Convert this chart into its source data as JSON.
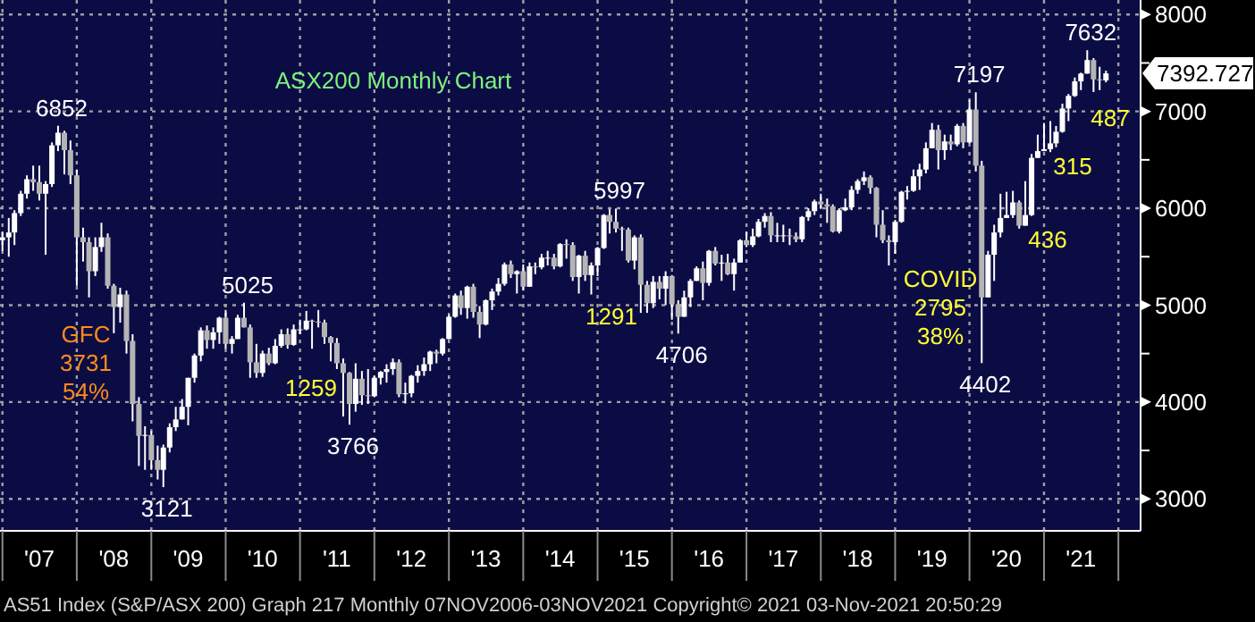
{
  "chart_data": {
    "type": "candlestick",
    "title": "ASX200 Monthly Chart",
    "x": [
      "2007-01",
      "2007-02",
      "2007-03",
      "2007-04",
      "2007-05",
      "2007-06",
      "2007-07",
      "2007-08",
      "2007-09",
      "2007-10",
      "2007-11",
      "2007-12",
      "2008-01",
      "2008-02",
      "2008-03",
      "2008-04",
      "2008-05",
      "2008-06",
      "2008-07",
      "2008-08",
      "2008-09",
      "2008-10",
      "2008-11",
      "2008-12",
      "2009-01",
      "2009-02",
      "2009-03",
      "2009-04",
      "2009-05",
      "2009-06",
      "2009-07",
      "2009-08",
      "2009-09",
      "2009-10",
      "2009-11",
      "2009-12",
      "2010-01",
      "2010-02",
      "2010-03",
      "2010-04",
      "2010-05",
      "2010-06",
      "2010-07",
      "2010-08",
      "2010-09",
      "2010-10",
      "2010-11",
      "2010-12",
      "2011-01",
      "2011-02",
      "2011-03",
      "2011-04",
      "2011-05",
      "2011-06",
      "2011-07",
      "2011-08",
      "2011-09",
      "2011-10",
      "2011-11",
      "2011-12",
      "2012-01",
      "2012-02",
      "2012-03",
      "2012-04",
      "2012-05",
      "2012-06",
      "2012-07",
      "2012-08",
      "2012-09",
      "2012-10",
      "2012-11",
      "2012-12",
      "2013-01",
      "2013-02",
      "2013-03",
      "2013-04",
      "2013-05",
      "2013-06",
      "2013-07",
      "2013-08",
      "2013-09",
      "2013-10",
      "2013-11",
      "2013-12",
      "2014-01",
      "2014-02",
      "2014-03",
      "2014-04",
      "2014-05",
      "2014-06",
      "2014-07",
      "2014-08",
      "2014-09",
      "2014-10",
      "2014-11",
      "2014-12",
      "2015-01",
      "2015-02",
      "2015-03",
      "2015-04",
      "2015-05",
      "2015-06",
      "2015-07",
      "2015-08",
      "2015-09",
      "2015-10",
      "2015-11",
      "2015-12",
      "2016-01",
      "2016-02",
      "2016-03",
      "2016-04",
      "2016-05",
      "2016-06",
      "2016-07",
      "2016-08",
      "2016-09",
      "2016-10",
      "2016-11",
      "2016-12",
      "2017-01",
      "2017-02",
      "2017-03",
      "2017-04",
      "2017-05",
      "2017-06",
      "2017-07",
      "2017-08",
      "2017-09",
      "2017-10",
      "2017-11",
      "2017-12",
      "2018-01",
      "2018-02",
      "2018-03",
      "2018-04",
      "2018-05",
      "2018-06",
      "2018-07",
      "2018-08",
      "2018-09",
      "2018-10",
      "2018-11",
      "2018-12",
      "2019-01",
      "2019-02",
      "2019-03",
      "2019-04",
      "2019-05",
      "2019-06",
      "2019-07",
      "2019-08",
      "2019-09",
      "2019-10",
      "2019-11",
      "2019-12",
      "2020-01",
      "2020-02",
      "2020-03",
      "2020-04",
      "2020-05",
      "2020-06",
      "2020-07",
      "2020-08",
      "2020-09",
      "2020-10",
      "2020-11",
      "2020-12",
      "2021-01",
      "2021-02",
      "2021-03",
      "2021-04",
      "2021-05",
      "2021-06",
      "2021-07",
      "2021-08",
      "2021-09",
      "2021-10",
      "2021-11"
    ],
    "ohlc": [
      [
        5670,
        5760,
        5560,
        5700
      ],
      [
        5700,
        5900,
        5500,
        5750
      ],
      [
        5750,
        5980,
        5620,
        5950
      ],
      [
        5950,
        6180,
        5920,
        6150
      ],
      [
        6150,
        6340,
        6100,
        6300
      ],
      [
        6300,
        6440,
        6180,
        6270
      ],
      [
        6270,
        6440,
        6080,
        6150
      ],
      [
        6150,
        6280,
        5520,
        6250
      ],
      [
        6250,
        6680,
        6220,
        6650
      ],
      [
        6650,
        6852,
        6590,
        6780
      ],
      [
        6780,
        6800,
        6350,
        6600
      ],
      [
        6600,
        6700,
        6250,
        6340
      ],
      [
        6340,
        6400,
        5200,
        5700
      ],
      [
        5700,
        5800,
        5450,
        5650
      ],
      [
        5650,
        5700,
        5080,
        5350
      ],
      [
        5350,
        5700,
        5300,
        5600
      ],
      [
        5600,
        5850,
        5550,
        5700
      ],
      [
        5700,
        5740,
        5170,
        5200
      ],
      [
        5200,
        5220,
        4710,
        4980
      ],
      [
        4980,
        5180,
        4820,
        5110
      ],
      [
        5110,
        5150,
        4500,
        4630
      ],
      [
        4630,
        4700,
        3800,
        3980
      ],
      [
        3980,
        4050,
        3340,
        3650
      ],
      [
        3650,
        3750,
        3300,
        3660
      ],
      [
        3660,
        3700,
        3300,
        3400
      ],
      [
        3400,
        3550,
        3200,
        3300
      ],
      [
        3300,
        3560,
        3121,
        3530
      ],
      [
        3530,
        3780,
        3480,
        3740
      ],
      [
        3740,
        3950,
        3700,
        3820
      ],
      [
        3820,
        4030,
        3820,
        3950
      ],
      [
        3950,
        4250,
        3760,
        4250
      ],
      [
        4250,
        4500,
        4200,
        4480
      ],
      [
        4480,
        4770,
        4420,
        4740
      ],
      [
        4740,
        4790,
        4550,
        4640
      ],
      [
        4640,
        4770,
        4550,
        4720
      ],
      [
        4720,
        4880,
        4600,
        4870
      ],
      [
        4870,
        4950,
        4550,
        4600
      ],
      [
        4600,
        4680,
        4500,
        4650
      ],
      [
        4650,
        4900,
        4650,
        4870
      ],
      [
        4870,
        5025,
        4770,
        4770
      ],
      [
        4770,
        4800,
        4250,
        4410
      ],
      [
        4410,
        4600,
        4250,
        4300
      ],
      [
        4300,
        4530,
        4260,
        4500
      ],
      [
        4500,
        4560,
        4380,
        4400
      ],
      [
        4400,
        4650,
        4390,
        4580
      ],
      [
        4580,
        4750,
        4560,
        4700
      ],
      [
        4700,
        4760,
        4550,
        4590
      ],
      [
        4590,
        4800,
        4580,
        4750
      ],
      [
        4750,
        4850,
        4700,
        4750
      ],
      [
        4750,
        4940,
        4740,
        4840
      ],
      [
        4840,
        4850,
        4550,
        4830
      ],
      [
        4830,
        4950,
        4770,
        4820
      ],
      [
        4820,
        4850,
        4600,
        4670
      ],
      [
        4670,
        4680,
        4420,
        4610
      ],
      [
        4610,
        4660,
        4340,
        4400
      ],
      [
        4400,
        4450,
        3850,
        4300
      ],
      [
        4300,
        4310,
        3766,
        3980
      ],
      [
        3980,
        4400,
        3900,
        4240
      ],
      [
        4240,
        4320,
        3970,
        4070
      ],
      [
        4070,
        4340,
        3980,
        4060
      ],
      [
        4060,
        4270,
        4050,
        4250
      ],
      [
        4250,
        4320,
        4180,
        4310
      ],
      [
        4310,
        4390,
        4200,
        4340
      ],
      [
        4340,
        4450,
        4280,
        4410
      ],
      [
        4410,
        4440,
        4050,
        4080
      ],
      [
        4080,
        4200,
        3985,
        4090
      ],
      [
        4090,
        4280,
        4050,
        4270
      ],
      [
        4270,
        4380,
        4200,
        4320
      ],
      [
        4320,
        4460,
        4270,
        4390
      ],
      [
        4390,
        4530,
        4320,
        4520
      ],
      [
        4520,
        4540,
        4400,
        4500
      ],
      [
        4500,
        4660,
        4480,
        4650
      ],
      [
        4650,
        4900,
        4650,
        4880
      ],
      [
        4880,
        5120,
        4870,
        5100
      ],
      [
        5100,
        5150,
        4900,
        4970
      ],
      [
        4970,
        5200,
        4860,
        5190
      ],
      [
        5190,
        5220,
        4870,
        4930
      ],
      [
        4930,
        4990,
        4660,
        4800
      ],
      [
        4800,
        5060,
        4790,
        5050
      ],
      [
        5050,
        5170,
        4950,
        5140
      ],
      [
        5140,
        5280,
        5100,
        5220
      ],
      [
        5220,
        5440,
        5200,
        5420
      ],
      [
        5420,
        5460,
        5280,
        5320
      ],
      [
        5320,
        5360,
        5120,
        5350
      ],
      [
        5350,
        5420,
        5150,
        5190
      ],
      [
        5190,
        5440,
        5190,
        5400
      ],
      [
        5400,
        5440,
        5320,
        5390
      ],
      [
        5390,
        5530,
        5370,
        5490
      ],
      [
        5490,
        5560,
        5410,
        5490
      ],
      [
        5490,
        5530,
        5370,
        5400
      ],
      [
        5400,
        5640,
        5390,
        5630
      ],
      [
        5630,
        5680,
        5480,
        5620
      ],
      [
        5620,
        5650,
        5250,
        5290
      ],
      [
        5290,
        5520,
        5120,
        5510
      ],
      [
        5510,
        5560,
        5250,
        5310
      ],
      [
        5310,
        5440,
        5110,
        5410
      ],
      [
        5410,
        5600,
        5300,
        5590
      ],
      [
        5590,
        5940,
        5580,
        5930
      ],
      [
        5930,
        5990,
        5740,
        5860
      ],
      [
        5860,
        5997,
        5750,
        5790
      ],
      [
        5790,
        5810,
        5560,
        5780
      ],
      [
        5780,
        5800,
        5440,
        5460
      ],
      [
        5460,
        5720,
        5370,
        5700
      ],
      [
        5700,
        5730,
        4920,
        5210
      ],
      [
        5210,
        5250,
        4920,
        5020
      ],
      [
        5020,
        5300,
        4970,
        5240
      ],
      [
        5240,
        5300,
        5060,
        5170
      ],
      [
        5170,
        5350,
        5000,
        5300
      ],
      [
        5300,
        5310,
        4850,
        5010
      ],
      [
        5010,
        5050,
        4706,
        4880
      ],
      [
        4880,
        5150,
        4880,
        5080
      ],
      [
        5080,
        5270,
        4980,
        5250
      ],
      [
        5250,
        5400,
        5250,
        5380
      ],
      [
        5380,
        5450,
        5050,
        5230
      ],
      [
        5230,
        5570,
        5200,
        5560
      ],
      [
        5560,
        5600,
        5410,
        5430
      ],
      [
        5430,
        5520,
        5250,
        5440
      ],
      [
        5440,
        5530,
        5310,
        5320
      ],
      [
        5320,
        5480,
        5150,
        5440
      ],
      [
        5440,
        5680,
        5440,
        5670
      ],
      [
        5670,
        5760,
        5600,
        5620
      ],
      [
        5620,
        5790,
        5600,
        5710
      ],
      [
        5710,
        5890,
        5700,
        5860
      ],
      [
        5860,
        5950,
        5800,
        5920
      ],
      [
        5920,
        5960,
        5650,
        5720
      ],
      [
        5720,
        5850,
        5650,
        5720
      ],
      [
        5720,
        5830,
        5650,
        5720
      ],
      [
        5720,
        5790,
        5620,
        5710
      ],
      [
        5710,
        5750,
        5650,
        5680
      ],
      [
        5680,
        5920,
        5650,
        5910
      ],
      [
        5910,
        6000,
        5870,
        5970
      ],
      [
        5970,
        6090,
        5930,
        6070
      ],
      [
        6070,
        6150,
        6000,
        6040
      ],
      [
        6040,
        6100,
        5850,
        6020
      ],
      [
        6020,
        6040,
        5750,
        5760
      ],
      [
        5760,
        6000,
        5740,
        5980
      ],
      [
        5980,
        6100,
        5970,
        6010
      ],
      [
        6010,
        6230,
        5980,
        6190
      ],
      [
        6190,
        6300,
        6150,
        6280
      ],
      [
        6280,
        6380,
        6240,
        6320
      ],
      [
        6320,
        6340,
        6150,
        6210
      ],
      [
        6210,
        6220,
        5700,
        5830
      ],
      [
        5830,
        5980,
        5640,
        5670
      ],
      [
        5670,
        5720,
        5410,
        5650
      ],
      [
        5650,
        5880,
        5530,
        5860
      ],
      [
        5860,
        6180,
        5850,
        6170
      ],
      [
        6170,
        6230,
        6090,
        6180
      ],
      [
        6180,
        6400,
        6170,
        6330
      ],
      [
        6330,
        6460,
        6190,
        6400
      ],
      [
        6400,
        6680,
        6360,
        6620
      ],
      [
        6620,
        6880,
        6620,
        6810
      ],
      [
        6810,
        6860,
        6400,
        6600
      ],
      [
        6600,
        6760,
        6500,
        6690
      ],
      [
        6690,
        6760,
        6600,
        6660
      ],
      [
        6660,
        6870,
        6640,
        6850
      ],
      [
        6850,
        6880,
        6620,
        6680
      ],
      [
        6680,
        7120,
        6670,
        7020
      ],
      [
        7020,
        7197,
        6380,
        6440
      ],
      [
        6440,
        6490,
        4402,
        5080
      ],
      [
        5080,
        5560,
        5080,
        5520
      ],
      [
        5520,
        5830,
        5250,
        5750
      ],
      [
        5750,
        6150,
        5700,
        5900
      ],
      [
        5900,
        6170,
        5900,
        5930
      ],
      [
        5930,
        6180,
        5900,
        6060
      ],
      [
        6060,
        6080,
        5790,
        5820
      ],
      [
        5820,
        6280,
        5820,
        5930
      ],
      [
        5930,
        6560,
        5920,
        6520
      ],
      [
        6520,
        6760,
        6520,
        6590
      ],
      [
        6590,
        6880,
        6590,
        6610
      ],
      [
        6610,
        6900,
        6580,
        6670
      ],
      [
        6670,
        6850,
        6630,
        6790
      ],
      [
        6790,
        7080,
        6780,
        7030
      ],
      [
        7030,
        7180,
        6900,
        7160
      ],
      [
        7160,
        7350,
        7150,
        7310
      ],
      [
        7310,
        7400,
        7220,
        7390
      ],
      [
        7390,
        7632,
        7390,
        7530
      ],
      [
        7530,
        7550,
        7200,
        7330
      ],
      [
        7330,
        7460,
        7220,
        7320
      ],
      [
        7320,
        7420,
        7300,
        7392.727
      ]
    ],
    "xlim": [
      "2006-12-20",
      "2022-04-20"
    ],
    "xticks": [
      {
        "value": "2007-01",
        "label": null
      },
      {
        "value": "2007-07",
        "label": "'07"
      },
      {
        "value": "2008-01",
        "label": null
      },
      {
        "value": "2008-07",
        "label": "'08"
      },
      {
        "value": "2009-01",
        "label": null
      },
      {
        "value": "2009-07",
        "label": "'09"
      },
      {
        "value": "2010-01",
        "label": null
      },
      {
        "value": "2010-07",
        "label": "'10"
      },
      {
        "value": "2011-01",
        "label": null
      },
      {
        "value": "2011-07",
        "label": "'11"
      },
      {
        "value": "2012-01",
        "label": null
      },
      {
        "value": "2012-07",
        "label": "'12"
      },
      {
        "value": "2013-01",
        "label": null
      },
      {
        "value": "2013-07",
        "label": "'13"
      },
      {
        "value": "2014-01",
        "label": null
      },
      {
        "value": "2014-07",
        "label": "'14"
      },
      {
        "value": "2015-01",
        "label": null
      },
      {
        "value": "2015-07",
        "label": "'15"
      },
      {
        "value": "2016-01",
        "label": null
      },
      {
        "value": "2016-07",
        "label": "'16"
      },
      {
        "value": "2017-01",
        "label": null
      },
      {
        "value": "2017-07",
        "label": "'17"
      },
      {
        "value": "2018-01",
        "label": null
      },
      {
        "value": "2018-07",
        "label": "'18"
      },
      {
        "value": "2019-01",
        "label": null
      },
      {
        "value": "2019-07",
        "label": "'19"
      },
      {
        "value": "2020-01",
        "label": null
      },
      {
        "value": "2020-07",
        "label": "'20"
      },
      {
        "value": "2021-01",
        "label": null
      },
      {
        "value": "2021-07",
        "label": "'21"
      },
      {
        "value": "2022-01",
        "label": null
      }
    ],
    "ylim": [
      2670,
      8150
    ],
    "yticks": [
      3000,
      {
        "value": 3500,
        "label": null
      },
      4000,
      {
        "value": 4500,
        "label": null
      },
      5000,
      {
        "value": 5500,
        "label": null
      },
      6000,
      {
        "value": 6500,
        "label": null
      },
      7000,
      {
        "value": 7500,
        "label": null
      },
      8000
    ],
    "grid": true,
    "annotations": [
      {
        "text": "6852",
        "x": "2007-10",
        "y": 6852
      },
      {
        "text": "3121",
        "x": "2009-03",
        "y": 3121
      },
      {
        "text": "5025",
        "x": "2010-04",
        "y": 5025
      },
      {
        "text": "3766",
        "x": "2011-09",
        "y": 3766
      },
      {
        "text": "5997",
        "x": "2015-04",
        "y": 5997
      },
      {
        "text": "4706",
        "x": "2016-02",
        "y": 4706
      },
      {
        "text": "7197",
        "x": "2020-02",
        "y": 7197
      },
      {
        "text": "4402",
        "x": "2020-03",
        "y": 4402
      },
      {
        "text": "7632",
        "x": "2021-08",
        "y": 7632
      },
      {
        "text": "7392.727",
        "x": "2021-11",
        "y": 7392.727
      },
      "1259",
      "1291",
      "436",
      "315",
      "487",
      "COVID\n2795\n38%",
      "GFC\n3731\n54%",
      "AS51 Index (S&P/ASX 200) Graph 217 Monthly 07NOV2006-03NOV2021 Copyright© 2021 03-Nov-2021 20:50:29"
    ]
  }
}
